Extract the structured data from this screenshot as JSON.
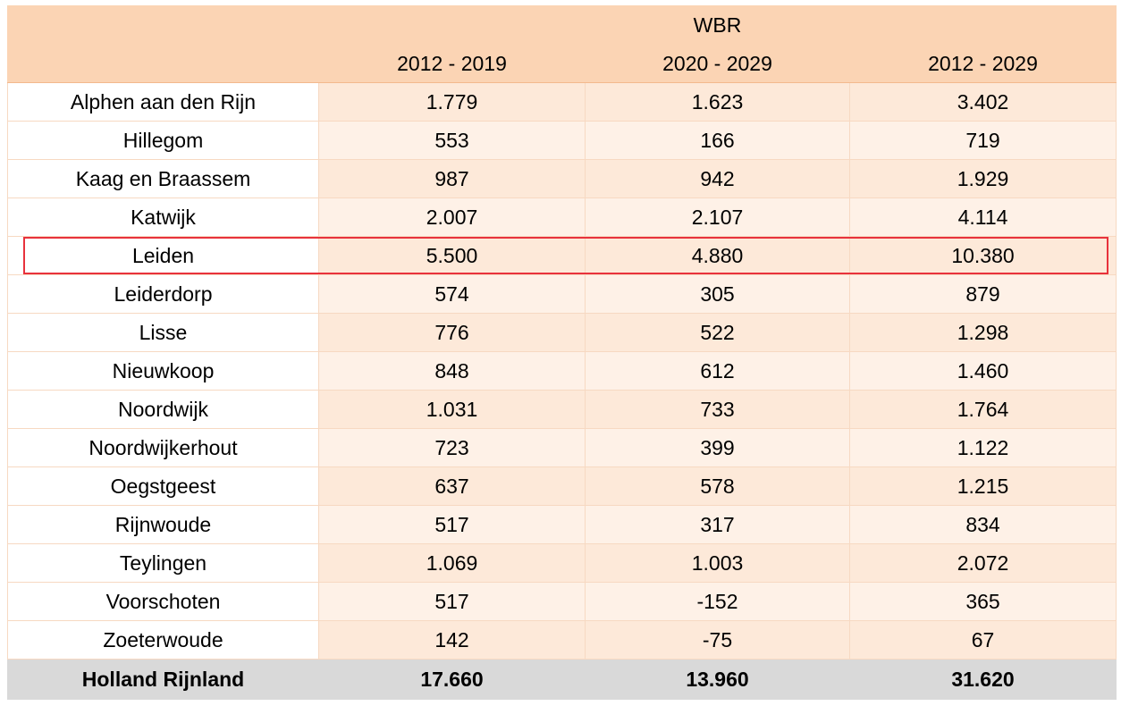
{
  "table": {
    "group_header": "WBR",
    "columns": [
      "2012 - 2019",
      "2020 - 2029",
      "2012 - 2029"
    ],
    "rows": [
      {
        "name": "Alphen aan den Rijn",
        "v1": "1.779",
        "v2": "1.623",
        "v3": "3.402"
      },
      {
        "name": "Hillegom",
        "v1": "553",
        "v2": "166",
        "v3": "719"
      },
      {
        "name": "Kaag en Braassem",
        "v1": "987",
        "v2": "942",
        "v3": "1.929"
      },
      {
        "name": "Katwijk",
        "v1": "2.007",
        "v2": "2.107",
        "v3": "4.114"
      },
      {
        "name": "Leiden",
        "v1": "5.500",
        "v2": "4.880",
        "v3": "10.380",
        "highlighted": true
      },
      {
        "name": "Leiderdorp",
        "v1": "574",
        "v2": "305",
        "v3": "879"
      },
      {
        "name": "Lisse",
        "v1": "776",
        "v2": "522",
        "v3": "1.298"
      },
      {
        "name": "Nieuwkoop",
        "v1": "848",
        "v2": "612",
        "v3": "1.460"
      },
      {
        "name": "Noordwijk",
        "v1": "1.031",
        "v2": "733",
        "v3": "1.764"
      },
      {
        "name": "Noordwijkerhout",
        "v1": "723",
        "v2": "399",
        "v3": "1.122"
      },
      {
        "name": "Oegstgeest",
        "v1": "637",
        "v2": "578",
        "v3": "1.215"
      },
      {
        "name": "Rijnwoude",
        "v1": "517",
        "v2": "317",
        "v3": "834"
      },
      {
        "name": "Teylingen",
        "v1": "1.069",
        "v2": "1.003",
        "v3": "2.072"
      },
      {
        "name": "Voorschoten",
        "v1": "517",
        "v2": "-152",
        "v3": "365"
      },
      {
        "name": "Zoeterwoude",
        "v1": "142",
        "v2": "-75",
        "v3": "67"
      }
    ],
    "total": {
      "name": "Holland Rijnland",
      "v1": "17.660",
      "v2": "13.960",
      "v3": "31.620"
    }
  },
  "colors": {
    "header_bg": "#fbd4b4",
    "cell_bg": "#fde9d9",
    "total_bg": "#d9d9d9",
    "highlight_border": "#e8323c"
  }
}
